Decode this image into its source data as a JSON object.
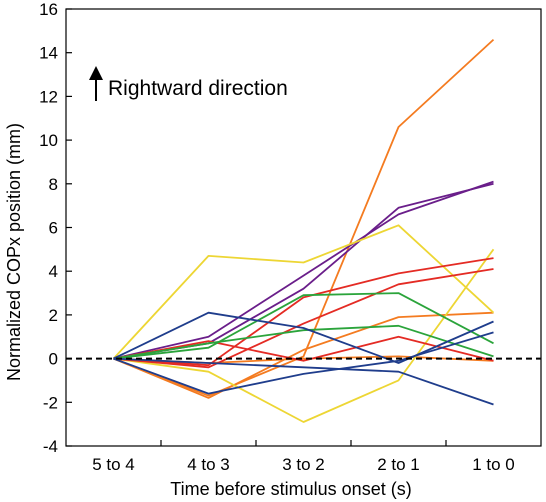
{
  "chart_data": {
    "type": "line",
    "title": "",
    "xlabel": "Time before stimulus onset (s)",
    "ylabel": "Normalized COPx position (mm)",
    "categories": [
      "5 to 4",
      "4 to 3",
      "3 to 2",
      "2 to 1",
      "1 to 0"
    ],
    "ylim": [
      -4,
      16
    ],
    "yticks": [
      -4,
      -2,
      0,
      2,
      4,
      6,
      8,
      10,
      12,
      14,
      16
    ],
    "grid": false,
    "legend": "none",
    "reference_line": {
      "y": 0,
      "style": "dashed",
      "color": "#000000"
    },
    "annotation": {
      "text": "Rightward direction",
      "icon": "up-arrow-icon"
    },
    "series": [
      {
        "color": "#F47B20",
        "values": [
          0,
          -1.7,
          0.1,
          10.6,
          14.6
        ]
      },
      {
        "color": "#F47B20",
        "values": [
          0,
          -1.8,
          0.4,
          1.9,
          2.1
        ]
      },
      {
        "color": "#F47B20",
        "values": [
          0,
          -0.2,
          0.0,
          0.1,
          -0.1
        ]
      },
      {
        "color": "#6A1E8A",
        "values": [
          0,
          0.7,
          3.2,
          6.9,
          8.0
        ]
      },
      {
        "color": "#6A1E8A",
        "values": [
          0,
          1.0,
          3.8,
          6.6,
          8.1
        ]
      },
      {
        "color": "#EDD634",
        "values": [
          0,
          4.7,
          4.4,
          6.1,
          2.1
        ]
      },
      {
        "color": "#EDD634",
        "values": [
          0,
          -0.6,
          -2.9,
          -1.0,
          5.0
        ]
      },
      {
        "color": "#E42B24",
        "values": [
          0,
          -0.3,
          2.8,
          3.9,
          4.6
        ]
      },
      {
        "color": "#E42B24",
        "values": [
          0,
          -0.4,
          1.6,
          3.4,
          4.1
        ]
      },
      {
        "color": "#E42B24",
        "values": [
          0,
          0.8,
          -0.1,
          1.0,
          -0.1
        ]
      },
      {
        "color": "#2BA43B",
        "values": [
          0,
          0.5,
          2.9,
          3.0,
          0.7
        ]
      },
      {
        "color": "#2BA43B",
        "values": [
          0,
          0.7,
          1.3,
          1.5,
          0.1
        ]
      },
      {
        "color": "#1F3D8C",
        "values": [
          0,
          2.1,
          1.4,
          -0.2,
          1.7
        ]
      },
      {
        "color": "#1F3D8C",
        "values": [
          0,
          -1.6,
          -0.7,
          -0.1,
          1.2
        ]
      },
      {
        "color": "#1F3D8C",
        "values": [
          0,
          -0.2,
          -0.4,
          -0.6,
          -2.1
        ]
      }
    ]
  }
}
